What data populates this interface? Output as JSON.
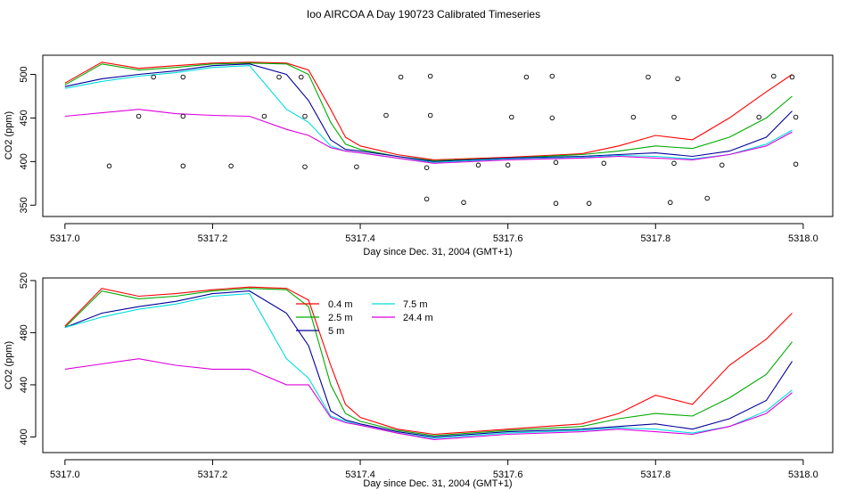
{
  "figure": {
    "title": "Ioo AIRCOA A  Day 190723  Calibrated Timeseries"
  },
  "chart_data": [
    {
      "type": "line",
      "title": "Ioo AIRCOA A  Day 190723  Calibrated Timeseries",
      "xlabel": "Day since Dec. 31, 2004 (GMT+1)",
      "ylabel": "CO2 (ppm)",
      "xlim": [
        5316.97,
        5318.04
      ],
      "ylim": [
        337,
        522
      ],
      "xticks": [
        5317.0,
        5317.2,
        5317.4,
        5317.6,
        5317.8,
        5318.0
      ],
      "xtick_labels": [
        "5317.0",
        "5317.2",
        "5317.4",
        "5317.6",
        "5317.8",
        "5318.0"
      ],
      "yticks": [
        350,
        400,
        450,
        500
      ],
      "ytick_labels": [
        "350",
        "400",
        "450",
        "500"
      ],
      "grid": false,
      "legend": null,
      "series": [
        {
          "color": "#ff0000",
          "x": [
            5317.0,
            5317.05,
            5317.1,
            5317.15,
            5317.2,
            5317.25,
            5317.3,
            5317.33,
            5317.36,
            5317.38,
            5317.4,
            5317.45,
            5317.5,
            5317.6,
            5317.7,
            5317.75,
            5317.8,
            5317.85,
            5317.9,
            5317.95,
            5317.985
          ],
          "y": [
            490,
            514,
            507,
            510,
            513,
            514,
            513,
            505,
            460,
            428,
            418,
            408,
            402,
            405,
            409,
            418,
            430,
            425,
            450,
            480,
            500
          ]
        },
        {
          "color": "#00aa00",
          "x": [
            5317.0,
            5317.05,
            5317.1,
            5317.15,
            5317.2,
            5317.25,
            5317.3,
            5317.33,
            5317.36,
            5317.38,
            5317.4,
            5317.45,
            5317.5,
            5317.6,
            5317.7,
            5317.75,
            5317.8,
            5317.85,
            5317.9,
            5317.95,
            5317.985
          ],
          "y": [
            488,
            512,
            505,
            508,
            512,
            513,
            512,
            500,
            445,
            420,
            414,
            406,
            401,
            404,
            408,
            412,
            418,
            415,
            428,
            450,
            475
          ]
        },
        {
          "color": "#000099",
          "x": [
            5317.0,
            5317.05,
            5317.1,
            5317.15,
            5317.2,
            5317.25,
            5317.3,
            5317.33,
            5317.36,
            5317.38,
            5317.4,
            5317.45,
            5317.5,
            5317.6,
            5317.7,
            5317.75,
            5317.8,
            5317.85,
            5317.9,
            5317.95,
            5317.985
          ],
          "y": [
            486,
            495,
            500,
            504,
            510,
            512,
            500,
            470,
            425,
            414,
            412,
            406,
            400,
            404,
            406,
            408,
            410,
            406,
            412,
            428,
            458
          ]
        },
        {
          "color": "#00dddd",
          "x": [
            5317.0,
            5317.05,
            5317.1,
            5317.15,
            5317.2,
            5317.25,
            5317.3,
            5317.33,
            5317.36,
            5317.38,
            5317.4,
            5317.45,
            5317.5,
            5317.6,
            5317.7,
            5317.75,
            5317.8,
            5317.85,
            5317.9,
            5317.95,
            5317.985
          ],
          "y": [
            484,
            492,
            498,
            502,
            508,
            510,
            460,
            445,
            418,
            412,
            410,
            404,
            399,
            403,
            405,
            407,
            406,
            403,
            408,
            420,
            436
          ]
        },
        {
          "color": "#dd00dd",
          "x": [
            5317.0,
            5317.05,
            5317.1,
            5317.15,
            5317.2,
            5317.25,
            5317.3,
            5317.33,
            5317.36,
            5317.38,
            5317.4,
            5317.45,
            5317.5,
            5317.6,
            5317.7,
            5317.75,
            5317.8,
            5317.85,
            5317.9,
            5317.95,
            5317.985
          ],
          "y": [
            452,
            456,
            460,
            455,
            453,
            452,
            437,
            430,
            416,
            412,
            410,
            404,
            398,
            402,
            404,
            406,
            404,
            402,
            408,
            418,
            434
          ]
        }
      ],
      "points": {
        "color": "#000000",
        "x": [
          5317.06,
          5317.16,
          5317.225,
          5317.325,
          5317.395,
          5317.49,
          5317.56,
          5317.6,
          5317.665,
          5317.73,
          5317.825,
          5317.89,
          5317.99,
          5317.1,
          5317.16,
          5317.27,
          5317.325,
          5317.435,
          5317.495,
          5317.605,
          5317.66,
          5317.77,
          5317.825,
          5317.94,
          5317.99,
          5317.12,
          5317.16,
          5317.29,
          5317.32,
          5317.455,
          5317.495,
          5317.625,
          5317.66,
          5317.79,
          5317.83,
          5317.96,
          5317.985,
          5317.49,
          5317.54,
          5317.665,
          5317.71,
          5317.82,
          5317.87
        ],
        "y": [
          395,
          395,
          395,
          394,
          394,
          393,
          396,
          396,
          399,
          398,
          398,
          396,
          397,
          452,
          452,
          452,
          452,
          453,
          453,
          451,
          450,
          451,
          451,
          451,
          451,
          497,
          497,
          497,
          497,
          497,
          498,
          497,
          498,
          497,
          495,
          498,
          497,
          357,
          353,
          352,
          352,
          353,
          358
        ]
      }
    },
    {
      "type": "line",
      "xlabel": "Day since Dec. 31, 2004 (GMT+1)",
      "ylabel": "CO2 (ppm)",
      "xlim": [
        5316.97,
        5318.04
      ],
      "ylim": [
        388,
        522
      ],
      "xticks": [
        5317.0,
        5317.2,
        5317.4,
        5317.6,
        5317.8,
        5318.0
      ],
      "xtick_labels": [
        "5317.0",
        "5317.2",
        "5317.4",
        "5317.6",
        "5317.8",
        "5318.0"
      ],
      "yticks": [
        400,
        440,
        480,
        520
      ],
      "ytick_labels": [
        "400",
        "440",
        "480",
        "520"
      ],
      "grid": false,
      "legend": "top-center",
      "series": [
        {
          "name": "0.4 m",
          "color": "#ff0000",
          "x": [
            5317.0,
            5317.05,
            5317.1,
            5317.15,
            5317.2,
            5317.25,
            5317.3,
            5317.33,
            5317.36,
            5317.38,
            5317.4,
            5317.45,
            5317.5,
            5317.6,
            5317.7,
            5317.75,
            5317.8,
            5317.85,
            5317.9,
            5317.95,
            5317.985
          ],
          "y": [
            485,
            514,
            508,
            510,
            513,
            515,
            514,
            505,
            455,
            425,
            415,
            406,
            402,
            406,
            410,
            418,
            432,
            425,
            455,
            475,
            495
          ]
        },
        {
          "name": "2.5 m",
          "color": "#00aa00",
          "x": [
            5317.0,
            5317.05,
            5317.1,
            5317.15,
            5317.2,
            5317.25,
            5317.3,
            5317.33,
            5317.36,
            5317.38,
            5317.4,
            5317.45,
            5317.5,
            5317.6,
            5317.7,
            5317.75,
            5317.8,
            5317.85,
            5317.9,
            5317.95,
            5317.985
          ],
          "y": [
            484,
            512,
            506,
            508,
            512,
            514,
            513,
            500,
            440,
            418,
            412,
            405,
            401,
            405,
            408,
            414,
            418,
            416,
            430,
            448,
            473
          ]
        },
        {
          "name": "5 m",
          "color": "#000099",
          "x": [
            5317.0,
            5317.05,
            5317.1,
            5317.15,
            5317.2,
            5317.25,
            5317.3,
            5317.33,
            5317.36,
            5317.38,
            5317.4,
            5317.45,
            5317.5,
            5317.6,
            5317.7,
            5317.75,
            5317.8,
            5317.85,
            5317.9,
            5317.95,
            5317.985
          ],
          "y": [
            484,
            495,
            500,
            504,
            510,
            512,
            495,
            470,
            420,
            413,
            410,
            404,
            400,
            404,
            406,
            408,
            410,
            406,
            414,
            428,
            458
          ]
        },
        {
          "name": "7.5 m",
          "color": "#00dddd",
          "x": [
            5317.0,
            5317.05,
            5317.1,
            5317.15,
            5317.2,
            5317.25,
            5317.3,
            5317.33,
            5317.36,
            5317.38,
            5317.4,
            5317.45,
            5317.5,
            5317.6,
            5317.7,
            5317.75,
            5317.8,
            5317.85,
            5317.9,
            5317.95,
            5317.985
          ],
          "y": [
            484,
            492,
            498,
            502,
            508,
            510,
            460,
            445,
            416,
            412,
            409,
            403,
            399,
            403,
            405,
            407,
            406,
            403,
            408,
            420,
            436
          ]
        },
        {
          "name": "24.4 m",
          "color": "#dd00dd",
          "x": [
            5317.0,
            5317.05,
            5317.1,
            5317.15,
            5317.2,
            5317.25,
            5317.3,
            5317.33,
            5317.36,
            5317.38,
            5317.4,
            5317.45,
            5317.5,
            5317.6,
            5317.7,
            5317.75,
            5317.8,
            5317.85,
            5317.9,
            5317.95,
            5317.985
          ],
          "y": [
            452,
            456,
            460,
            455,
            452,
            452,
            440,
            440,
            415,
            411,
            409,
            403,
            398,
            402,
            404,
            406,
            404,
            402,
            408,
            418,
            434
          ]
        }
      ]
    }
  ]
}
